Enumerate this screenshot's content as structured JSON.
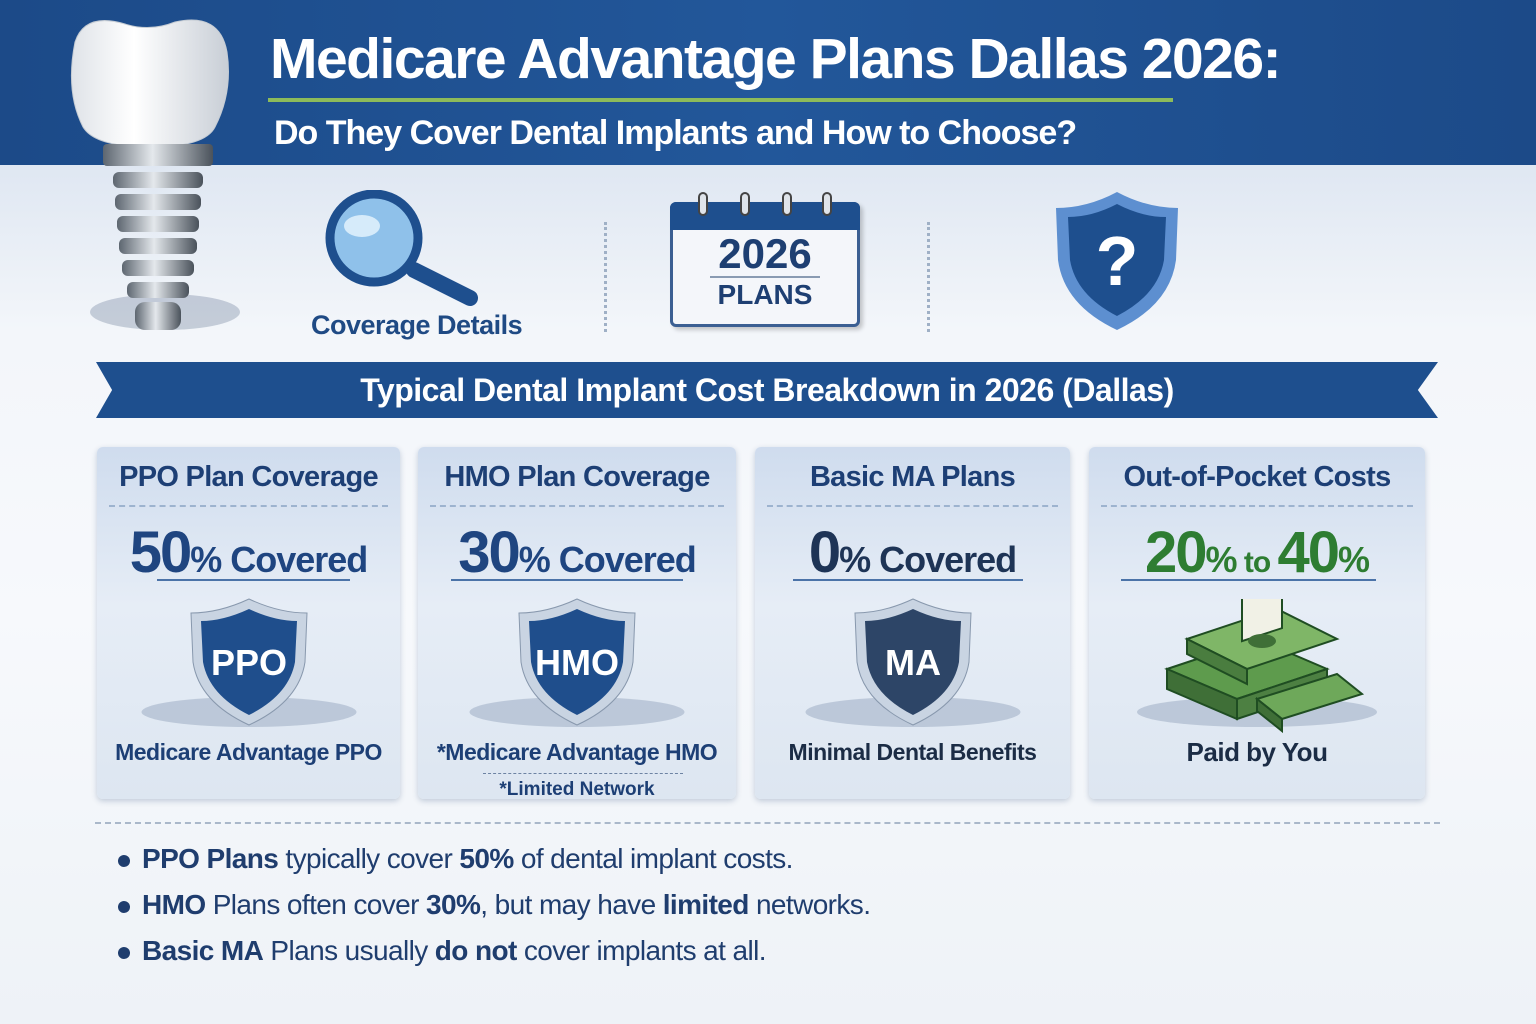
{
  "header": {
    "title": "Medicare Advantage Plans Dallas 2026:",
    "subtitle": "Do They Cover Dental Implants and How to Choose?"
  },
  "icons": {
    "tooth_implant": "dental-implant-icon",
    "magnifier": {
      "icon": "magnifying-glass-icon",
      "label": "Coverage Details"
    },
    "calendar": {
      "icon": "calendar-icon",
      "year": "2026",
      "label": "PLANS"
    },
    "shield": {
      "icon": "shield-question-icon",
      "glyph": "?"
    }
  },
  "banner": {
    "title": "Typical Dental Implant Cost Breakdown in 2026 (Dallas)"
  },
  "cards": [
    {
      "heading": "PPO Plan Coverage",
      "number": "50",
      "rest": "% Covered",
      "shield_label": "PPO",
      "footer": "Medicare Advantage PPO",
      "note": ""
    },
    {
      "heading": "HMO Plan Coverage",
      "number": "30",
      "rest": "% Covered",
      "shield_label": "HMO",
      "footer": "*Medicare Advantage HMO",
      "note": "*Limited Network"
    },
    {
      "heading": "Basic MA Plans",
      "number": "0",
      "rest": "% Covered",
      "shield_label": "MA",
      "footer": "Minimal Dental Benefits",
      "note": ""
    },
    {
      "heading": "Out-of-Pocket Costs",
      "from": "20",
      "pct1": "%",
      "to": " to ",
      "upto": "40",
      "pct2": "%",
      "icon": "money-stack-icon",
      "footer": "Paid by You"
    }
  ],
  "colors": {
    "primary": "#1e4f8e",
    "accent_green": "#2e7d32",
    "rule_green": "#8dbb5a"
  },
  "bullets": [
    [
      {
        "t": "PPO Plans",
        "b": true
      },
      {
        "t": " typically cover ",
        "b": false
      },
      {
        "t": "50%",
        "b": true
      },
      {
        "t": " of dental implant costs.",
        "b": false
      }
    ],
    [
      {
        "t": "HMO",
        "b": true
      },
      {
        "t": " Plans often cover ",
        "b": false
      },
      {
        "t": "30%",
        "b": true
      },
      {
        "t": ", but may have ",
        "b": false
      },
      {
        "t": "limited",
        "b": true
      },
      {
        "t": " networks.",
        "b": false
      }
    ],
    [
      {
        "t": "Basic MA",
        "b": true
      },
      {
        "t": " Plans usually ",
        "b": false
      },
      {
        "t": "do not",
        "b": true
      },
      {
        "t": " cover implants at all.",
        "b": false
      }
    ]
  ]
}
